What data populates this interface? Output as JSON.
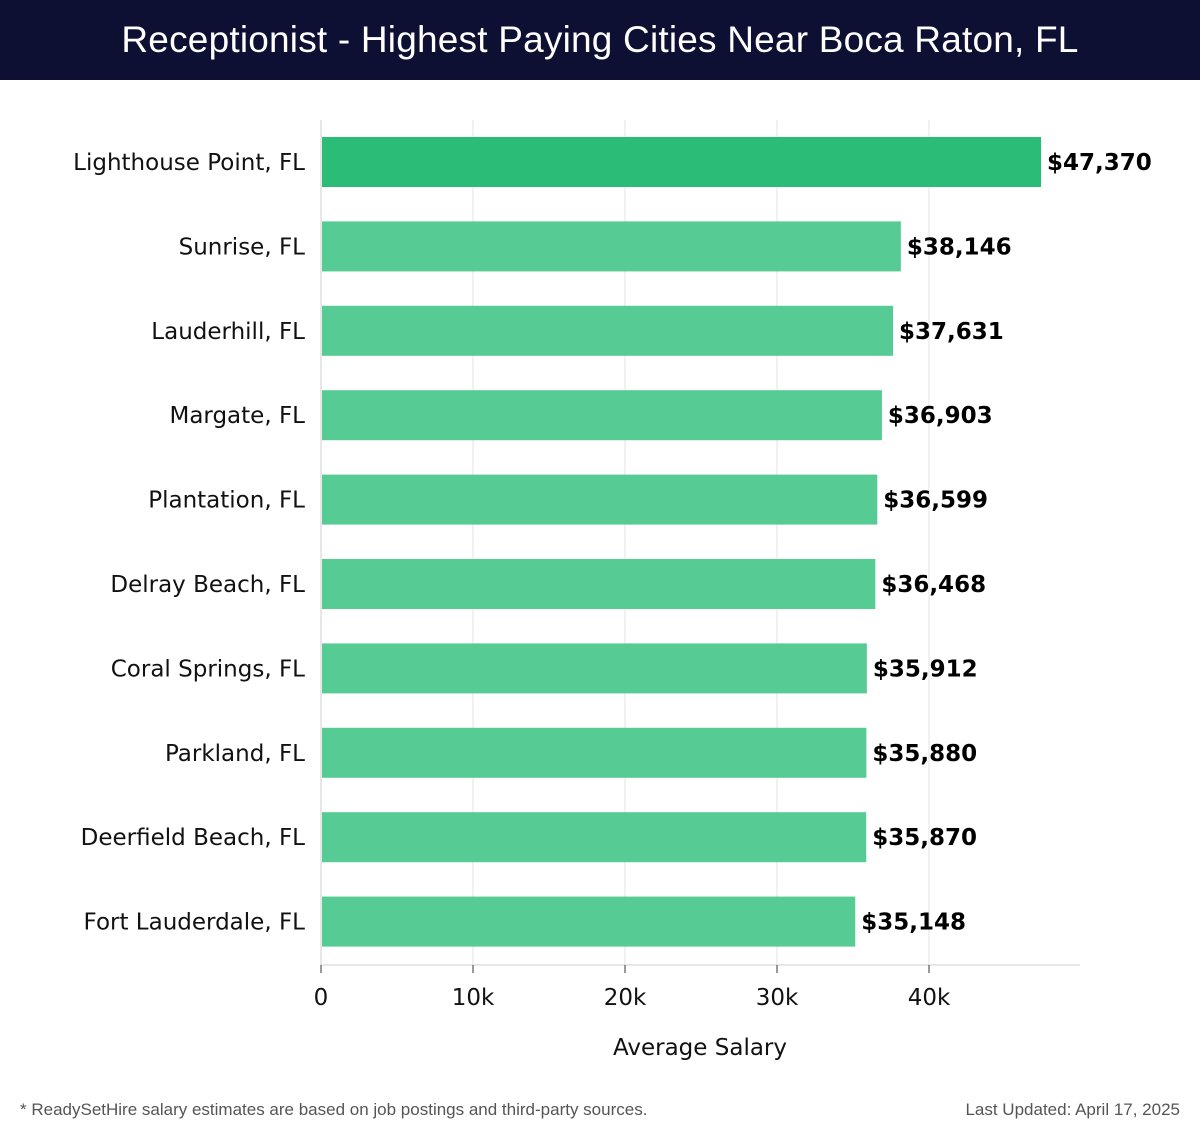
{
  "header": {
    "title": "Receptionist - Highest Paying Cities Near Boca Raton, FL"
  },
  "chart_data": {
    "type": "bar",
    "orientation": "horizontal",
    "categories": [
      "Lighthouse Point, FL",
      "Sunrise, FL",
      "Lauderhill, FL",
      "Margate, FL",
      "Plantation, FL",
      "Delray Beach, FL",
      "Coral Springs, FL",
      "Parkland, FL",
      "Deerfield Beach, FL",
      "Fort Lauderdale, FL"
    ],
    "values": [
      47370,
      38146,
      37631,
      36903,
      36599,
      36468,
      35912,
      35880,
      35870,
      35148
    ],
    "value_labels": [
      "$47,370",
      "$38,146",
      "$37,631",
      "$36,903",
      "$36,599",
      "$36,468",
      "$35,912",
      "$35,880",
      "$35,870",
      "$35,148"
    ],
    "xlabel": "Average Salary",
    "ylabel": "",
    "xlim": [
      0,
      50000
    ],
    "xticks": [
      0,
      10000,
      20000,
      30000,
      40000
    ],
    "xtick_labels": [
      "0",
      "10k",
      "20k",
      "30k",
      "40k"
    ],
    "grid": true,
    "colors": {
      "highlight": "#2bbd77",
      "bar": "#56cb94"
    }
  },
  "footer": {
    "note": "* ReadySetHire salary estimates are based on job postings and third-party sources.",
    "updated": "Last Updated: April 17, 2025"
  }
}
